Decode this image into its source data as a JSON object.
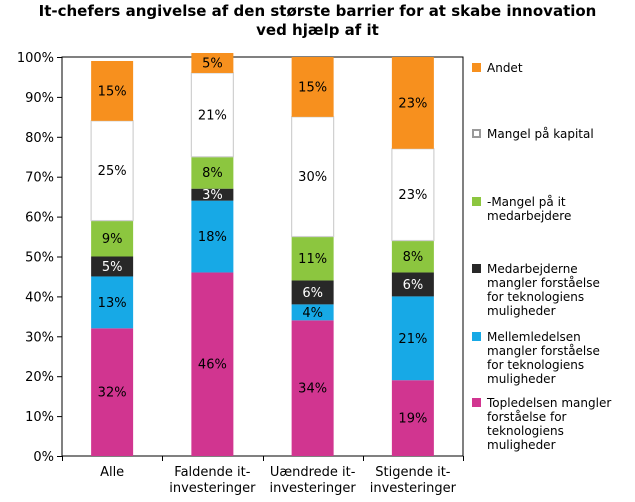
{
  "chart_data": {
    "type": "bar",
    "stacked": true,
    "title_lines": [
      "It-chefers angivelse af den største barrier for at skabe innovation",
      "ved hjælp af it"
    ],
    "categories": [
      [
        "Alle"
      ],
      [
        "Faldende it-",
        "investeringer"
      ],
      [
        "Uændrede it-",
        "investeringer"
      ],
      [
        "Stigende it-",
        "investeringer"
      ]
    ],
    "ylim": [
      0,
      100
    ],
    "yticks": [
      0,
      10,
      20,
      30,
      40,
      50,
      60,
      70,
      80,
      90,
      100
    ],
    "ytick_suffix": "%",
    "series": [
      {
        "name": "Topledelsen mangler forståelse for teknologiens muligheder",
        "legend_lines": [
          "Topledelsen mangler",
          "forståelse for",
          "teknologiens",
          "muligheder"
        ],
        "color": "#d13590",
        "values": [
          32,
          46,
          34,
          19
        ]
      },
      {
        "name": "Mellemledelsen mangler forståelse for teknologiens muligheder",
        "legend_lines": [
          "Mellemledelsen",
          "mangler forståelse",
          "for teknologiens",
          "muligheder"
        ],
        "color": "#17a9e6",
        "values": [
          13,
          18,
          4,
          21
        ]
      },
      {
        "name": "Medarbejderne mangler forståelse for teknologiens muligheder",
        "legend_lines": [
          "Medarbejderne",
          "mangler forståelse",
          "for teknologiens",
          "muligheder"
        ],
        "color": "#282828",
        "values": [
          5,
          3,
          6,
          6
        ]
      },
      {
        "name": "-Mangel på it medarbejdere",
        "legend_lines": [
          "-Mangel på it",
          "medarbejdere"
        ],
        "color": "#8cc63f",
        "values": [
          9,
          8,
          11,
          8
        ]
      },
      {
        "name": "Mangel på kapital",
        "legend_lines": [
          "Mangel på kapital"
        ],
        "color": "#ffffff",
        "values": [
          25,
          21,
          30,
          23
        ]
      },
      {
        "name": "Andet",
        "legend_lines": [
          "Andet"
        ],
        "color": "#f7901e",
        "values": [
          15,
          5,
          15,
          23
        ]
      }
    ],
    "data_labels": [
      [
        "32%",
        "13%",
        "5%",
        "9%",
        "25%",
        "15%"
      ],
      [
        "46%",
        "18%",
        "3%",
        "8%",
        "21%",
        "5%"
      ],
      [
        "34%",
        "4%",
        "6%",
        "11%",
        "30%",
        "15%"
      ],
      [
        "19%",
        "21%",
        "6%",
        "8%",
        "23%",
        "23%"
      ]
    ],
    "legend_position": "right"
  }
}
